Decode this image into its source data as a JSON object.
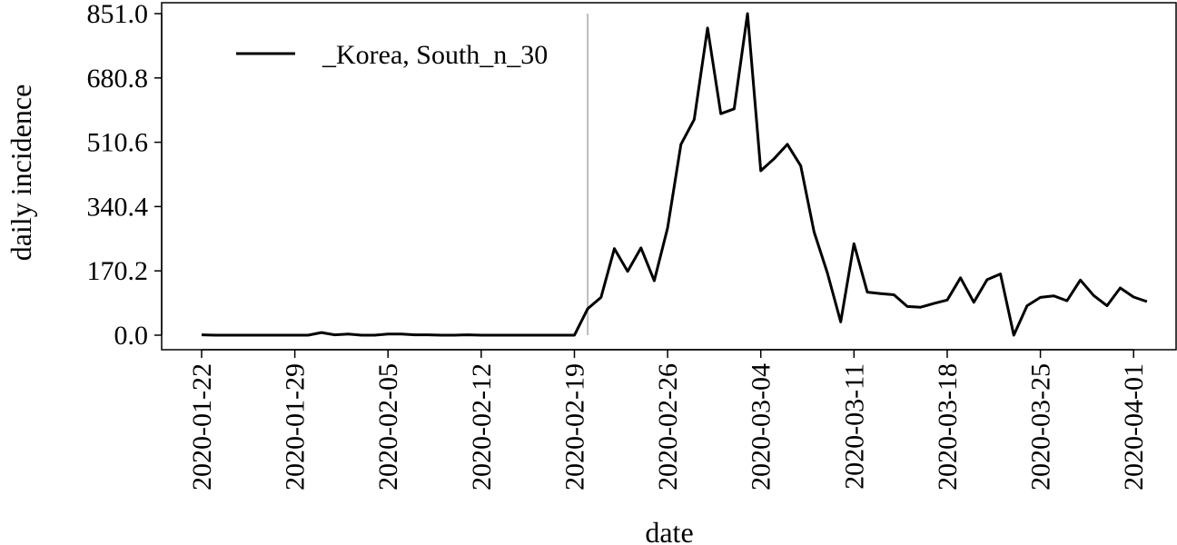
{
  "chart_data": {
    "type": "line",
    "xlabel": "date",
    "ylabel": "daily incidence",
    "ylim": [
      0,
      851.0
    ],
    "yticks": [
      "0.0",
      "170.2",
      "340.4",
      "510.6",
      "680.8",
      "851.0"
    ],
    "xticks": [
      "2020-01-22",
      "2020-01-29",
      "2020-02-05",
      "2020-02-12",
      "2020-02-19",
      "2020-02-26",
      "2020-03-04",
      "2020-03-11",
      "2020-03-18",
      "2020-03-25",
      "2020-04-01"
    ],
    "legend_position": "top-left",
    "vline_date": "2020-02-20",
    "series": [
      {
        "name": "_Korea, South_n_30",
        "color": "#000000",
        "x": [
          "2020-01-22",
          "2020-01-23",
          "2020-01-24",
          "2020-01-25",
          "2020-01-26",
          "2020-01-27",
          "2020-01-28",
          "2020-01-29",
          "2020-01-30",
          "2020-01-31",
          "2020-02-01",
          "2020-02-02",
          "2020-02-03",
          "2020-02-04",
          "2020-02-05",
          "2020-02-06",
          "2020-02-07",
          "2020-02-08",
          "2020-02-09",
          "2020-02-10",
          "2020-02-11",
          "2020-02-12",
          "2020-02-13",
          "2020-02-14",
          "2020-02-15",
          "2020-02-16",
          "2020-02-17",
          "2020-02-18",
          "2020-02-19",
          "2020-02-20",
          "2020-02-21",
          "2020-02-22",
          "2020-02-23",
          "2020-02-24",
          "2020-02-25",
          "2020-02-26",
          "2020-02-27",
          "2020-02-28",
          "2020-02-29",
          "2020-03-01",
          "2020-03-02",
          "2020-03-03",
          "2020-03-04",
          "2020-03-05",
          "2020-03-06",
          "2020-03-07",
          "2020-03-08",
          "2020-03-09",
          "2020-03-10",
          "2020-03-11",
          "2020-03-12",
          "2020-03-13",
          "2020-03-14",
          "2020-03-15",
          "2020-03-16",
          "2020-03-17",
          "2020-03-18",
          "2020-03-19",
          "2020-03-20",
          "2020-03-21",
          "2020-03-22",
          "2020-03-23",
          "2020-03-24",
          "2020-03-25",
          "2020-03-26",
          "2020-03-27",
          "2020-03-28",
          "2020-03-29",
          "2020-03-30",
          "2020-03-31",
          "2020-04-01",
          "2020-04-02"
        ],
        "values": [
          1,
          0,
          0,
          0,
          0,
          0,
          0,
          0,
          0,
          7,
          1,
          3,
          0,
          0,
          3,
          3,
          1,
          1,
          0,
          0,
          1,
          0,
          0,
          0,
          0,
          0,
          0,
          0,
          0,
          70,
          100,
          229,
          169,
          231,
          144,
          284,
          505,
          571,
          813,
          586,
          599,
          851,
          435,
          467,
          505,
          448,
          273,
          165,
          35,
          242,
          114,
          110,
          107,
          76,
          74,
          84,
          93,
          152,
          87,
          147,
          162,
          0,
          78,
          100,
          104,
          91,
          146,
          105,
          78,
          125,
          101,
          89
        ]
      }
    ]
  }
}
